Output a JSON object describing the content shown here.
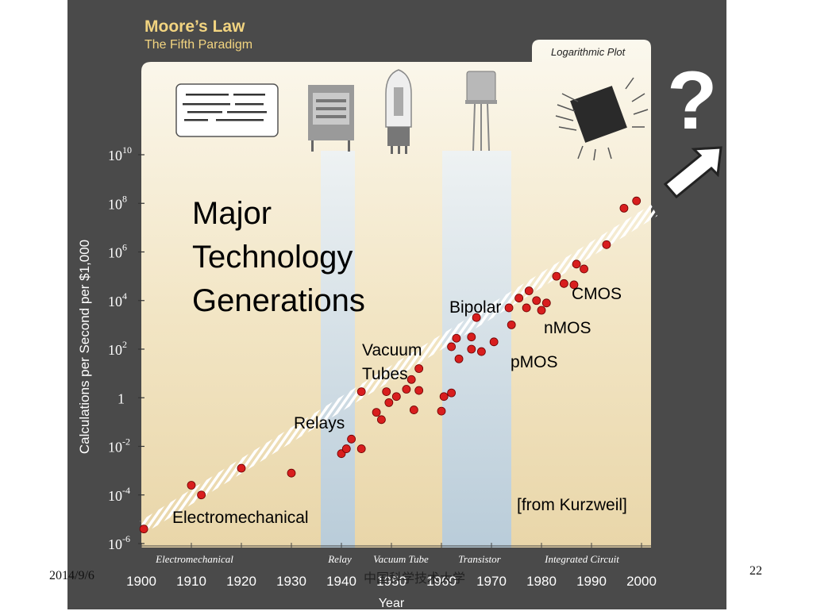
{
  "slide": {
    "title": "Moore’s Law",
    "subtitle": "The Fifth Paradigm",
    "plot_tag": "Logarithmic Plot",
    "question_mark": "?",
    "heading": "Major Technology Generations",
    "source": "[from Kurzweil]",
    "footer_date": "2014/9/6",
    "footer_org": "中国科学技术大学",
    "page_number": "22"
  },
  "chart_data": {
    "type": "scatter",
    "ylabel": "Calculations per Second per $1,000",
    "xlabel": "Year",
    "x_ticks": [
      "1900",
      "1910",
      "1920",
      "1930",
      "1940",
      "1950",
      "1960",
      "1970",
      "1980",
      "1990",
      "2000"
    ],
    "y_ticks": [
      {
        "base": "10",
        "exp": "-6"
      },
      {
        "base": "10",
        "exp": "-4"
      },
      {
        "base": "10",
        "exp": "-2"
      },
      {
        "base": "1",
        "exp": ""
      },
      {
        "base": "10",
        "exp": "2"
      },
      {
        "base": "10",
        "exp": "4"
      },
      {
        "base": "10",
        "exp": "6"
      },
      {
        "base": "10",
        "exp": "8"
      },
      {
        "base": "10",
        "exp": "10"
      }
    ],
    "y_scale": "log",
    "xlim": [
      1900,
      2000
    ],
    "ylim_exp": [
      -6,
      10
    ],
    "era_labels": [
      "Electromechanical",
      "Relay",
      "Vacuum Tube",
      "Transistor",
      "Integrated Circuit"
    ],
    "generation_labels": [
      "Electromechanical",
      "Relays",
      "Vacuum Tubes",
      "Bipolar",
      "pMOS",
      "nMOS",
      "CMOS"
    ],
    "colors": {
      "point": "#d81e1e",
      "relay_band": "#bcd0e0",
      "transistor_band": "#c3d3de",
      "trend": "#ffffff"
    },
    "points_year_log10": [
      [
        1900.5,
        -5.4
      ],
      [
        1910,
        -3.6
      ],
      [
        1912,
        -4.0
      ],
      [
        1920,
        -2.9
      ],
      [
        1930,
        -3.1
      ],
      [
        1940,
        -2.3
      ],
      [
        1941,
        -2.1
      ],
      [
        1942,
        -1.7
      ],
      [
        1944,
        -2.1
      ],
      [
        1944,
        0.25
      ],
      [
        1947,
        -0.6
      ],
      [
        1948,
        -0.9
      ],
      [
        1949,
        0.25
      ],
      [
        1949.5,
        -0.2
      ],
      [
        1951,
        0.05
      ],
      [
        1953,
        0.35
      ],
      [
        1954,
        0.75
      ],
      [
        1954.5,
        -0.5
      ],
      [
        1955.5,
        1.2
      ],
      [
        1955.5,
        0.3
      ],
      [
        1960,
        -0.55
      ],
      [
        1960.5,
        0.05
      ],
      [
        1962,
        0.2
      ],
      [
        1962,
        2.1
      ],
      [
        1963,
        2.45
      ],
      [
        1963.5,
        1.6
      ],
      [
        1966,
        2.5
      ],
      [
        1966,
        2.0
      ],
      [
        1967,
        3.3
      ],
      [
        1968,
        1.9
      ],
      [
        1970.5,
        2.3
      ],
      [
        1973.5,
        3.7
      ],
      [
        1974,
        3.0
      ],
      [
        1975.5,
        4.1
      ],
      [
        1977,
        3.7
      ],
      [
        1977.5,
        4.4
      ],
      [
        1979,
        4.0
      ],
      [
        1980,
        3.6
      ],
      [
        1981,
        3.9
      ],
      [
        1983,
        5.0
      ],
      [
        1984.5,
        4.7
      ],
      [
        1986.5,
        4.65
      ],
      [
        1987,
        5.5
      ],
      [
        1988.5,
        5.3
      ],
      [
        1993,
        6.3
      ],
      [
        1996.5,
        7.8
      ],
      [
        1999,
        8.1
      ]
    ]
  }
}
